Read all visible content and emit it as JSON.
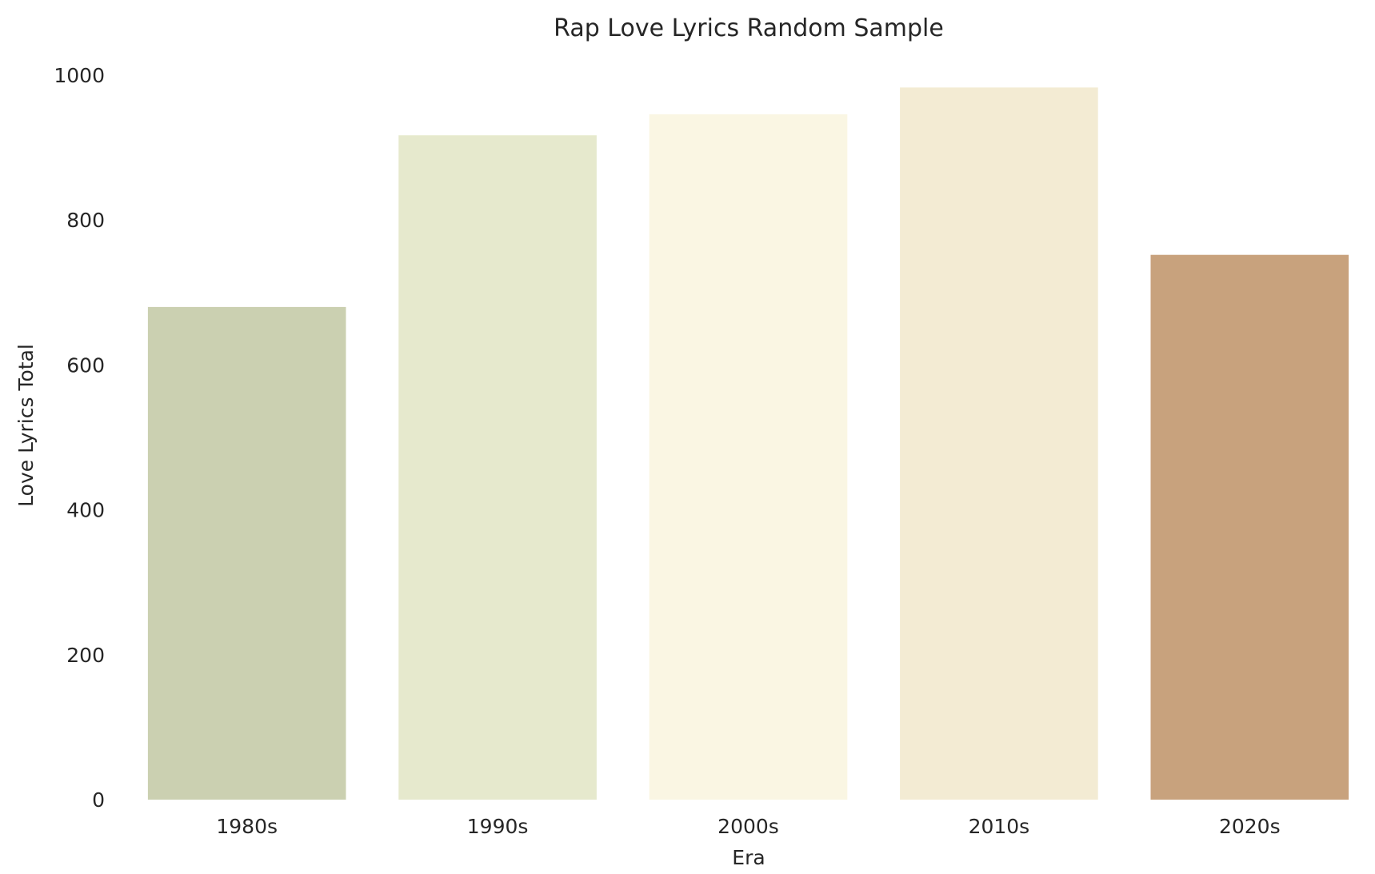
{
  "chart_data": {
    "type": "bar",
    "title": "Rap Love Lyrics Random Sample",
    "xlabel": "Era",
    "ylabel": "Love Lyrics Total",
    "categories": [
      "1980s",
      "1990s",
      "2000s",
      "2010s",
      "2020s"
    ],
    "values": [
      680,
      917,
      946,
      983,
      752
    ],
    "colors": [
      "#CBD0B1",
      "#E6E9CD",
      "#FAF6E3",
      "#F3EBD3",
      "#C8A27D"
    ],
    "ylim": [
      0,
      1000
    ],
    "yticks": [
      0,
      200,
      400,
      600,
      800,
      1000
    ],
    "ytick_labels": [
      "0",
      "200",
      "400",
      "600",
      "800",
      "1000"
    ],
    "grid": false,
    "legend": "none"
  }
}
